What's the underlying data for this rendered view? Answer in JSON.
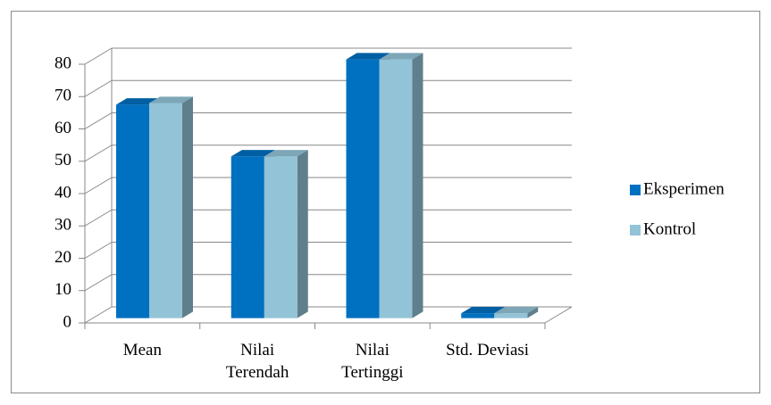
{
  "chart_data": {
    "type": "bar3d",
    "categories": [
      "Mean",
      "Nilai Terendah",
      "Nilai Tertinggi",
      "Std. Deviasi"
    ],
    "series": [
      {
        "name": "Eksperimen",
        "color": "#0070c0",
        "values": [
          66,
          50,
          80,
          1.5
        ]
      },
      {
        "name": "Kontrol",
        "color": "#93c3d7",
        "values": [
          66.5,
          50,
          80,
          1.5
        ]
      }
    ],
    "ylim": [
      0,
      80
    ],
    "yticks": [
      0,
      10,
      20,
      30,
      40,
      50,
      60,
      70,
      80
    ],
    "grid": true,
    "legend": "right"
  }
}
